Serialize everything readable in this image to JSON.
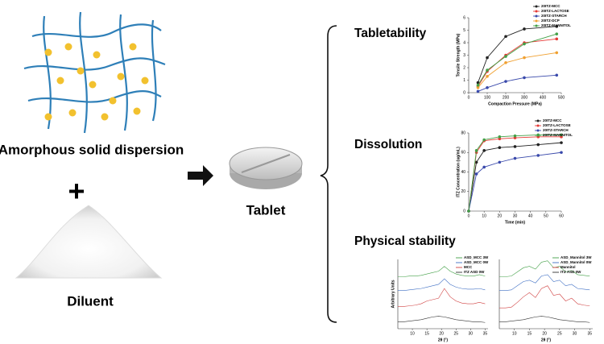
{
  "labels": {
    "asd": "Amorphous solid dispersion",
    "plus": "+",
    "diluent": "Diluent",
    "tablet": "Tablet",
    "tabletability": "Tabletability",
    "dissolution": "Dissolution",
    "physical_stability": "Physical stability"
  },
  "chart_data": [
    {
      "type": "line",
      "markers": true,
      "legend": "top-right",
      "xlabel": "Compaction Pressure (MPa)",
      "ylabel": "Tensile Strength (MPa)",
      "x": [
        50,
        100,
        200,
        300,
        475
      ],
      "xlim": [
        0,
        500
      ],
      "xticks": [
        0,
        100,
        200,
        300,
        400,
        500
      ],
      "ylim": [
        0,
        6
      ],
      "yticks": [
        0,
        1,
        2,
        3,
        4,
        5,
        6
      ],
      "series": [
        {
          "name": "20ITZ-MCC",
          "color": "#222222",
          "values": [
            0.8,
            2.8,
            4.5,
            5.1,
            5.3
          ]
        },
        {
          "name": "20ITZ-LACTOSE",
          "color": "#e53935",
          "values": [
            0.5,
            1.7,
            3.0,
            4.0,
            4.3
          ]
        },
        {
          "name": "20ITZ-STARCH",
          "color": "#3949ab",
          "values": [
            0.1,
            0.4,
            0.9,
            1.2,
            1.4
          ]
        },
        {
          "name": "20ITZ-DCP",
          "color": "#f0a030",
          "values": [
            0.4,
            1.3,
            2.4,
            2.8,
            3.2
          ]
        },
        {
          "name": "20ITZ-MANNITOL",
          "color": "#43a047",
          "values": [
            0.6,
            1.8,
            2.9,
            3.9,
            4.7
          ]
        }
      ]
    },
    {
      "type": "line",
      "markers": true,
      "legend": "top-right",
      "xlabel": "Time (min)",
      "ylabel": "ITZ Concentration (ug/mL)",
      "x": [
        0,
        5,
        10,
        20,
        30,
        45,
        60
      ],
      "xlim": [
        0,
        60
      ],
      "xticks": [
        0,
        10,
        20,
        30,
        40,
        50,
        60
      ],
      "ylim": [
        0,
        80
      ],
      "yticks": [
        0,
        20,
        40,
        60,
        80
      ],
      "series": [
        {
          "name": "20ITZ-MCC",
          "color": "#222222",
          "values": [
            0,
            50,
            62,
            65,
            66,
            68,
            70
          ]
        },
        {
          "name": "20ITZ-LACTOSE",
          "color": "#e53935",
          "values": [
            0,
            60,
            72,
            74,
            75,
            76,
            76
          ]
        },
        {
          "name": "20ITZ-STARCH",
          "color": "#3949ab",
          "values": [
            0,
            38,
            45,
            50,
            54,
            57,
            60
          ]
        },
        {
          "name": "20ITZ-MANNITOL",
          "color": "#43a047",
          "values": [
            0,
            62,
            73,
            76,
            77,
            78,
            78
          ]
        }
      ]
    },
    {
      "type": "line",
      "markers": false,
      "legend": "top-right",
      "xlabel": "2θ (°)",
      "ylabel": "Arbitrary Units",
      "x": [
        5,
        7,
        9,
        11,
        13,
        15,
        17,
        19,
        21,
        23,
        25,
        27,
        29,
        31,
        33,
        35
      ],
      "xlim": [
        5,
        36
      ],
      "xticks": [
        10,
        15,
        20,
        25,
        30,
        35
      ],
      "ylim": [
        0,
        100
      ],
      "series": [
        {
          "name": "ASD_MCC 3W",
          "color": "#43a047",
          "values": [
            75,
            75,
            76,
            76,
            77,
            79,
            81,
            83,
            90,
            83,
            79,
            77,
            76,
            76,
            78,
            76
          ]
        },
        {
          "name": "ASD_MCC 0W",
          "color": "#3f6fc4",
          "values": [
            55,
            55,
            56,
            57,
            58,
            60,
            62,
            64,
            72,
            64,
            60,
            58,
            57,
            57,
            58,
            56
          ]
        },
        {
          "name": "MCC",
          "color": "#d04040",
          "values": [
            32,
            32,
            33,
            34,
            36,
            40,
            42,
            44,
            58,
            46,
            40,
            37,
            36,
            36,
            38,
            36
          ]
        },
        {
          "name": "ITZ ASD 0W",
          "color": "#333333",
          "values": [
            10,
            10,
            11,
            12,
            13,
            15,
            17,
            18,
            17,
            15,
            13,
            12,
            11,
            10,
            10,
            9
          ]
        }
      ]
    },
    {
      "type": "line",
      "markers": false,
      "legend": "top-right",
      "xlabel": "2θ (°)",
      "x": [
        5,
        7,
        9,
        11,
        13,
        15,
        17,
        19,
        21,
        23,
        25,
        27,
        29,
        31,
        33,
        35
      ],
      "xlim": [
        5,
        36
      ],
      "xticks": [
        10,
        15,
        20,
        25,
        30,
        35
      ],
      "ylim": [
        0,
        100
      ],
      "series": [
        {
          "name": "ASD_Mannitol 3W",
          "color": "#43a047",
          "values": [
            75,
            75,
            76,
            82,
            88,
            90,
            86,
            96,
            98,
            88,
            90,
            82,
            84,
            78,
            77,
            76
          ]
        },
        {
          "name": "ASD_Mannitol 0W",
          "color": "#3f6fc4",
          "values": [
            55,
            55,
            56,
            62,
            68,
            70,
            66,
            76,
            78,
            68,
            70,
            62,
            64,
            58,
            57,
            56
          ]
        },
        {
          "name": "Mannitol",
          "color": "#d04040",
          "values": [
            30,
            30,
            31,
            38,
            46,
            52,
            45,
            58,
            62,
            48,
            50,
            40,
            44,
            36,
            34,
            33
          ]
        },
        {
          "name": "ITZ ASD 0W",
          "color": "#333333",
          "values": [
            10,
            10,
            11,
            12,
            13,
            15,
            17,
            18,
            17,
            15,
            13,
            12,
            11,
            10,
            10,
            9
          ]
        }
      ]
    }
  ]
}
